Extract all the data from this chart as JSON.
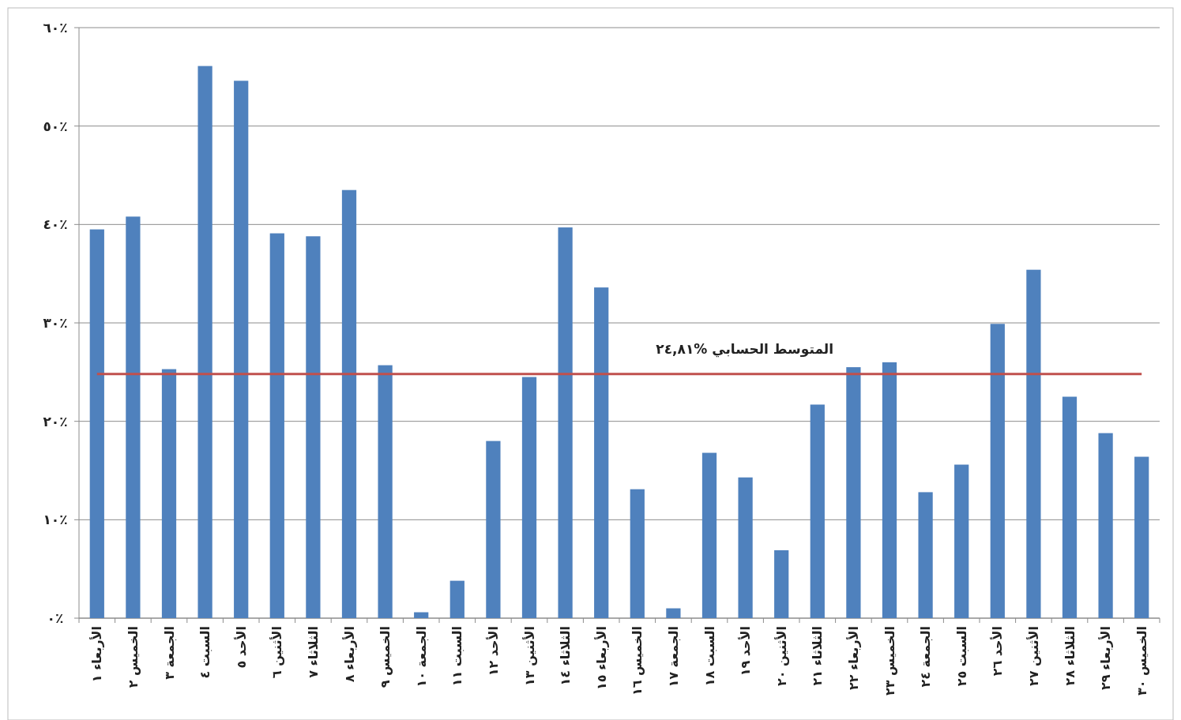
{
  "chart_data": {
    "type": "bar",
    "categories": [
      "الأربعاء ١",
      "الخميس ٢",
      "الجمعة ٣",
      "السبت ٤",
      "الأحد ٥",
      "الأثنين ٦",
      "الثلاثاء ٧",
      "الأربعاء ٨",
      "الخميس ٩",
      "الجمعة ١٠",
      "السبت ١١",
      "الأحد ١٢",
      "الأثنين ١٣",
      "الثلاثاء ١٤",
      "الأربعاء ١٥",
      "الخميس ١٦",
      "الجمعة ١٧",
      "السبت ١٨",
      "الأحد ١٩",
      "الأثنين ٢٠",
      "الثلاثاء ٢١",
      "الأربعاء ٢٢",
      "الخميس ٢٣",
      "الجمعة ٢٤",
      "السبت ٢٥",
      "الأحد ٢٦",
      "الأثنين ٢٧",
      "الثلاثاء ٢٨",
      "الأربعاء ٢٩",
      "الخميس ٣٠"
    ],
    "values": [
      39.5,
      40.8,
      25.3,
      56.1,
      54.6,
      39.1,
      38.8,
      43.5,
      25.7,
      0.6,
      3.8,
      18.0,
      24.5,
      39.7,
      33.6,
      13.1,
      1.0,
      16.8,
      14.3,
      6.9,
      21.7,
      25.5,
      26.0,
      12.8,
      15.6,
      29.9,
      35.4,
      22.5,
      18.8,
      16.4
    ],
    "color": "#4f81bd",
    "ylim": [
      0,
      60
    ],
    "yticks": [
      {
        "value": 0,
        "label": "٠٪"
      },
      {
        "value": 10,
        "label": "١٠٪"
      },
      {
        "value": 20,
        "label": "٢٠٪"
      },
      {
        "value": 30,
        "label": "٣٠٪"
      },
      {
        "value": 40,
        "label": "٤٠٪"
      },
      {
        "value": 50,
        "label": "٥٠٪"
      },
      {
        "value": 60,
        "label": "٦٠٪"
      }
    ],
    "grid": "y",
    "ref_lines": [
      {
        "axis": "y",
        "value": 24.81,
        "label": "المتوسط الحسابي %٢٤,٨١",
        "color": "#c0504d"
      }
    ]
  }
}
